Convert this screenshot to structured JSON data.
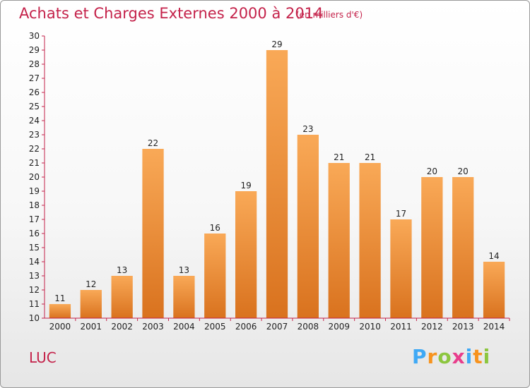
{
  "header": {
    "title": "Achats et Charges Externes 2000 à 2014",
    "subtitle": "(en milliers d'€)"
  },
  "footer": {
    "location": "LUC",
    "logo_letters": [
      "P",
      "r",
      "o",
      "x",
      "i",
      "t",
      "i"
    ],
    "logo_colors": [
      "#3fa9f5",
      "#f7931e",
      "#8cc63f",
      "#e83e8c",
      "#3fa9f5",
      "#f7931e",
      "#8cc63f"
    ]
  },
  "colors": {
    "title": "#c4224a",
    "bar_light": "#f9a957",
    "bar_dark": "#d9721e",
    "axis": "#c4224a"
  },
  "chart_data": {
    "type": "bar",
    "title": "Achats et Charges Externes 2000 à 2014",
    "categories": [
      "2000",
      "2001",
      "2002",
      "2003",
      "2004",
      "2005",
      "2006",
      "2007",
      "2008",
      "2009",
      "2010",
      "2011",
      "2012",
      "2013",
      "2014"
    ],
    "values": [
      11,
      12,
      13,
      22,
      13,
      16,
      19,
      29,
      23,
      21,
      21,
      17,
      20,
      20,
      14
    ],
    "ylim": [
      10,
      30
    ],
    "yticks": [
      10,
      11,
      12,
      13,
      14,
      15,
      16,
      17,
      18,
      19,
      20,
      21,
      22,
      23,
      24,
      25,
      26,
      27,
      28,
      29,
      30
    ],
    "grid": false,
    "xlabel": "",
    "ylabel": ""
  }
}
